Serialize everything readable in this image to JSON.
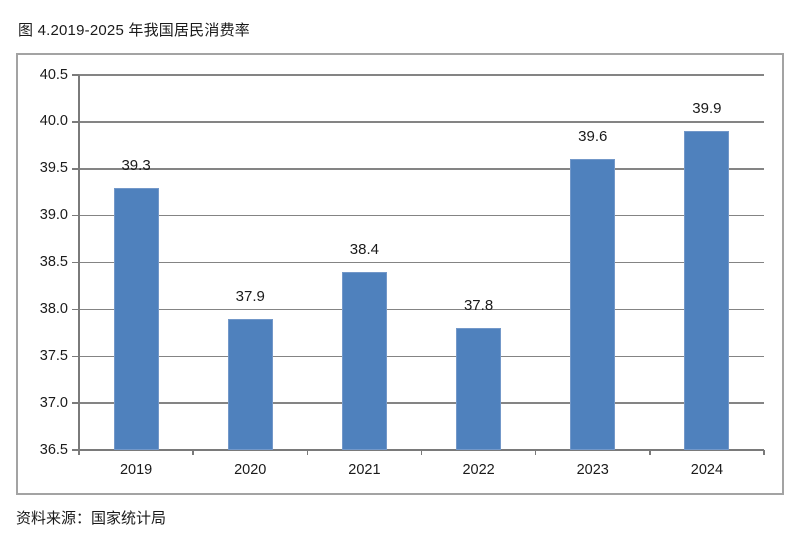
{
  "page": {
    "title": "图 4.2019-2025 年我国居民消费率",
    "source": "资料来源：国家统计局"
  },
  "chart_data": {
    "type": "bar",
    "title": "图 4.2019-2025 年我国居民消费率",
    "categories": [
      "2019",
      "2020",
      "2021",
      "2022",
      "2023",
      "2024"
    ],
    "values": [
      39.3,
      37.9,
      38.4,
      37.8,
      39.6,
      39.9
    ],
    "value_labels": [
      "39.3",
      "37.9",
      "38.4",
      "37.8",
      "39.6",
      "39.9"
    ],
    "ytick_labels": [
      "36.5",
      "37.0",
      "37.5",
      "38.0",
      "38.5",
      "39.0",
      "39.5",
      "40.0",
      "40.5"
    ],
    "ylim": [
      36.5,
      40.5
    ],
    "ytick_step": 0.5,
    "xlabel": "",
    "ylabel": "",
    "grid": true,
    "legend_position": "none",
    "source_note": "资料来源：国家统计局"
  },
  "colors": {
    "bar_fill": "#4F81BD",
    "bar_border": "#7398C9",
    "grid_line": "#848484",
    "axis_line": "#7a7a7a",
    "frame_border": "#A3A3A3",
    "text": "#1A1A1A"
  }
}
